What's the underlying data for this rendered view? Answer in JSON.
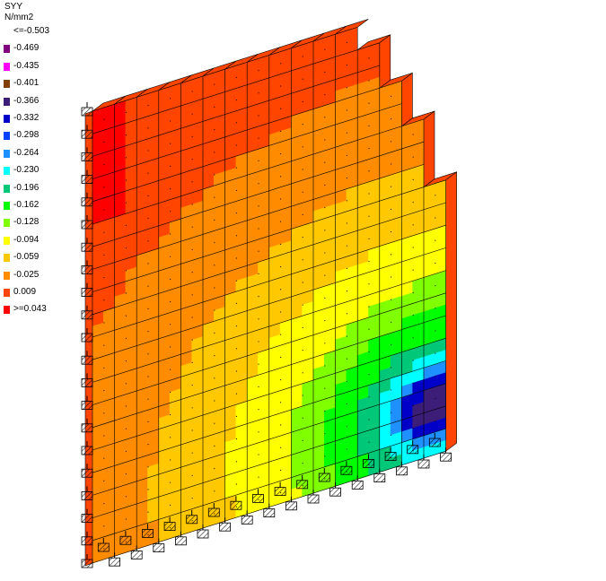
{
  "legend": {
    "title": "SYY",
    "unit": "N/mm2",
    "entries": [
      {
        "label": "<=-0.503",
        "color": "#800080",
        "swatch": false
      },
      {
        "label": "-0.469",
        "color": "#800080",
        "swatch": true
      },
      {
        "label": "-0.435",
        "color": "#ff00ff",
        "swatch": true
      },
      {
        "label": "-0.401",
        "color": "#804000",
        "swatch": true
      },
      {
        "label": "-0.366",
        "color": "#3c1e78",
        "swatch": true
      },
      {
        "label": "-0.332",
        "color": "#0000c8",
        "swatch": true
      },
      {
        "label": "-0.298",
        "color": "#0040ff",
        "swatch": true
      },
      {
        "label": "-0.264",
        "color": "#1e90ff",
        "swatch": true
      },
      {
        "label": "-0.230",
        "color": "#00ffff",
        "swatch": true
      },
      {
        "label": "-0.196",
        "color": "#00c878",
        "swatch": true
      },
      {
        "label": "-0.162",
        "color": "#00ff00",
        "swatch": true
      },
      {
        "label": "-0.128",
        "color": "#80ff00",
        "swatch": true
      },
      {
        "label": "-0.094",
        "color": "#ffff00",
        "swatch": true
      },
      {
        "label": "-0.059",
        "color": "#ffc800",
        "swatch": true
      },
      {
        "label": "-0.025",
        "color": "#ff8c00",
        "swatch": true
      },
      {
        "label": "0.009",
        "color": "#ff4500",
        "swatch": true
      },
      {
        "label": ">=0.043",
        "color": "#ff0000",
        "swatch": true
      }
    ]
  },
  "field": {
    "ncols": 16,
    "nrows": 20
  }
}
